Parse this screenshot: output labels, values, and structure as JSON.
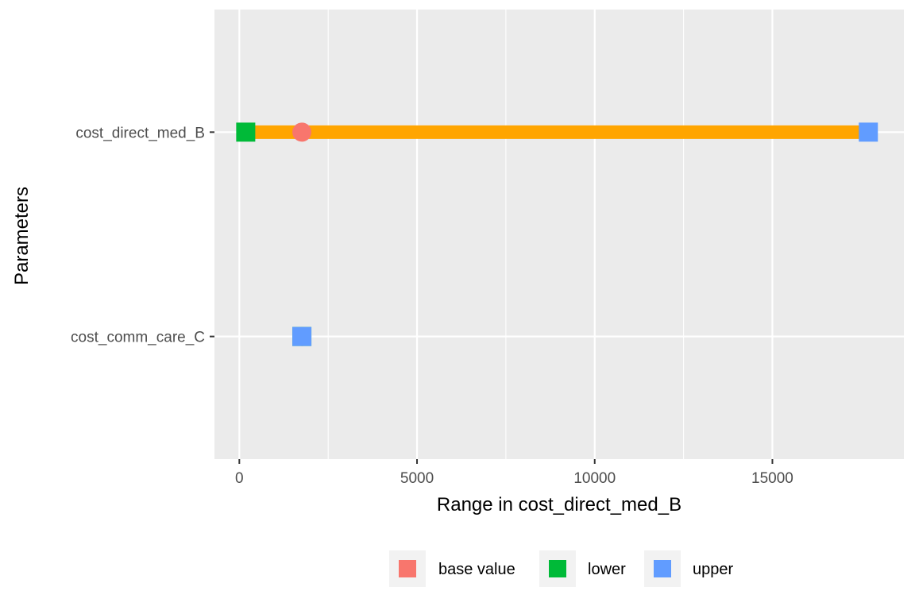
{
  "chart_data": {
    "type": "range-plot",
    "title": "",
    "xlabel": "Range in cost_direct_med_B",
    "ylabel": "Parameters",
    "xlim": [
      -700,
      18700
    ],
    "x_ticks": [
      0,
      5000,
      10000,
      15000
    ],
    "x_tick_labels": [
      "0",
      "5000",
      "10000",
      "15000"
    ],
    "grid": true,
    "legend_position": "bottom",
    "categories": [
      "cost_direct_med_B",
      "cost_comm_care_C"
    ],
    "ranges": [
      {
        "parameter": "cost_direct_med_B",
        "from": 180,
        "to": 17700,
        "color": "#FFA500"
      }
    ],
    "series": [
      {
        "name": "base value",
        "shape": "circle",
        "color": "#F8766D",
        "points": [
          {
            "parameter": "cost_direct_med_B",
            "x": 1760
          },
          {
            "parameter": "cost_comm_care_C",
            "x": 1760
          }
        ]
      },
      {
        "name": "lower",
        "shape": "square",
        "color": "#00BA38",
        "points": [
          {
            "parameter": "cost_direct_med_B",
            "x": 180
          },
          {
            "parameter": "cost_comm_care_C",
            "x": 1760
          }
        ]
      },
      {
        "name": "upper",
        "shape": "square",
        "color": "#619CFF",
        "points": [
          {
            "parameter": "cost_direct_med_B",
            "x": 17700
          },
          {
            "parameter": "cost_comm_care_C",
            "x": 1760
          }
        ]
      }
    ]
  }
}
